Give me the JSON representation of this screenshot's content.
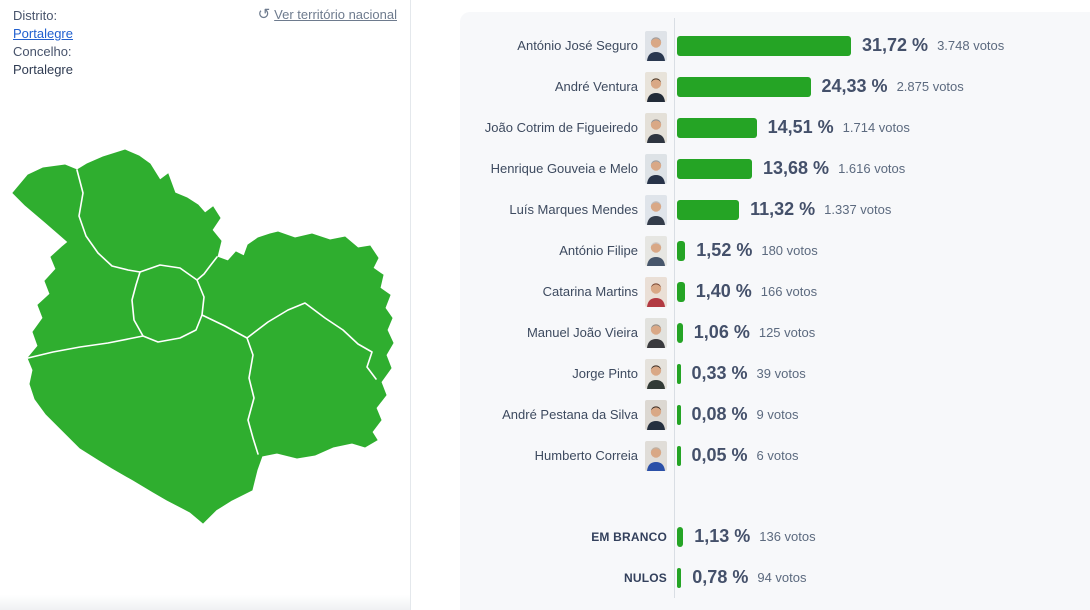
{
  "page": {
    "background": "#ffffff",
    "panel_background": "#f7f8fa"
  },
  "location": {
    "district_label": "Distrito:",
    "district_value": "Portalegre",
    "council_label": "Concelho:",
    "council_value": "Portalegre"
  },
  "nav": {
    "back_link_label": "Ver território nacional",
    "back_icon": "undo-rotate-icon"
  },
  "map": {
    "region": "Portalegre",
    "fill": "#2fae2f",
    "border_color": "#ffffff"
  },
  "chart_data": {
    "type": "bar",
    "orientation": "horizontal",
    "value_unit": "%",
    "axis_max_percent": 31.72,
    "bar_color": "#25a425",
    "grid": false,
    "candidates": [
      {
        "name": "António José Seguro",
        "percent": 31.72,
        "percent_label": "31,72 %",
        "votes_label": "3.748 votos",
        "avatar": {
          "bg": "#dfe3e8",
          "shirt": "#2a3850",
          "hair": "#9aa0a6"
        }
      },
      {
        "name": "André Ventura",
        "percent": 24.33,
        "percent_label": "24,33 %",
        "votes_label": "2.875 votos",
        "avatar": {
          "bg": "#e8e3da",
          "shirt": "#222b38",
          "hair": "#4a3b2d"
        }
      },
      {
        "name": "João Cotrim de Figueiredo",
        "percent": 14.51,
        "percent_label": "14,51 %",
        "votes_label": "1.714 votos",
        "avatar": {
          "bg": "#e4e0d8",
          "shirt": "#2e3540",
          "hair": "#8d9298"
        }
      },
      {
        "name": "Henrique Gouveia e Melo",
        "percent": 13.68,
        "percent_label": "13,68 %",
        "votes_label": "1.616 votos",
        "avatar": {
          "bg": "#dde2e6",
          "shirt": "#273349",
          "hair": "#97a0a8"
        }
      },
      {
        "name": "Luís Marques Mendes",
        "percent": 11.32,
        "percent_label": "11,32 %",
        "votes_label": "1.337 votos",
        "avatar": {
          "bg": "#dfe4ea",
          "shirt": "#333c4a",
          "hair": "#b9bec4"
        }
      },
      {
        "name": "António Filipe",
        "percent": 1.52,
        "percent_label": "1,52 %",
        "votes_label": "180 votos",
        "avatar": {
          "bg": "#e6e6e2",
          "shirt": "#47566b",
          "hair": "#c9ccd0"
        }
      },
      {
        "name": "Catarina Martins",
        "percent": 1.4,
        "percent_label": "1,40 %",
        "votes_label": "166 votos",
        "avatar": {
          "bg": "#eadfd6",
          "shirt": "#b23a42",
          "hair": "#7a4a38"
        }
      },
      {
        "name": "Manuel João Vieira",
        "percent": 1.06,
        "percent_label": "1,06 %",
        "votes_label": "125 votos",
        "avatar": {
          "bg": "#e2e2de",
          "shirt": "#3a3a3e",
          "hair": "#8e8e8a"
        }
      },
      {
        "name": "Jorge Pinto",
        "percent": 0.33,
        "percent_label": "0,33 %",
        "votes_label": "39 votos",
        "avatar": {
          "bg": "#e5e2dc",
          "shirt": "#323a36",
          "hair": "#3e332c"
        }
      },
      {
        "name": "André Pestana da Silva",
        "percent": 0.08,
        "percent_label": "0,08 %",
        "votes_label": "9 votos",
        "avatar": {
          "bg": "#dcd8d2",
          "shirt": "#25303f",
          "hair": "#3a2f28"
        }
      },
      {
        "name": "Humberto Correia",
        "percent": 0.05,
        "percent_label": "0,05 %",
        "votes_label": "6 votos",
        "avatar": {
          "bg": "#e0ddd8",
          "shirt": "#2b50a8",
          "hair": "#b9b2a8"
        }
      }
    ],
    "other_rows": [
      {
        "name": "EM BRANCO",
        "percent": 1.13,
        "percent_label": "1,13 %",
        "votes_label": "136 votos"
      },
      {
        "name": "NULOS",
        "percent": 0.78,
        "percent_label": "0,78 %",
        "votes_label": "94 votos"
      }
    ]
  }
}
